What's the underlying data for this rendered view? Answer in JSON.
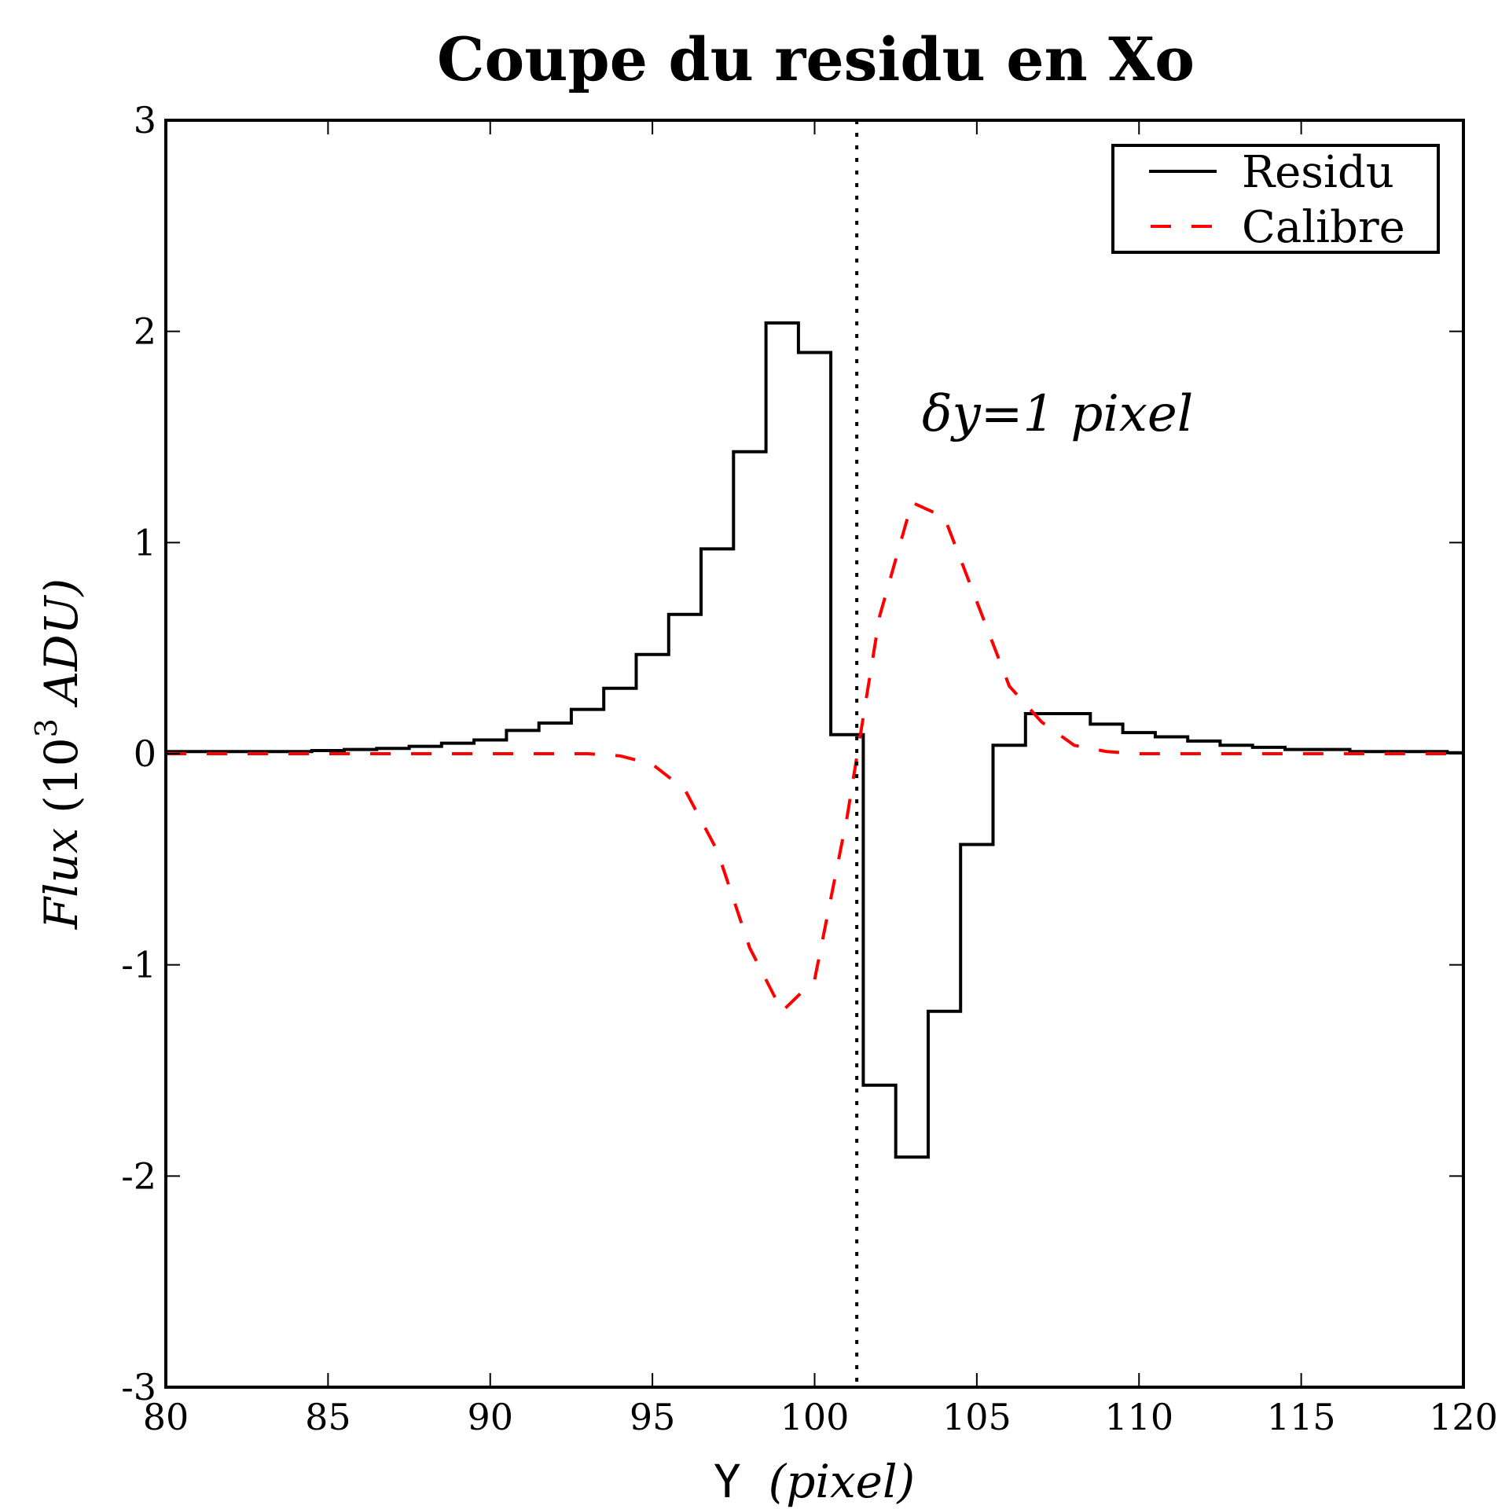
{
  "chart_data": {
    "type": "line",
    "title": "Coupe du residu en Xo",
    "xlabel": "Y (pixel)",
    "xlabel_parts": {
      "plain": "Y ",
      "italic": "(pixel)"
    },
    "ylabel": "Flux (10^3 ADU)",
    "ylabel_parts": {
      "italic_flux": "Flux",
      "open": " (10",
      "sup": "3",
      "unit": " ADU)"
    },
    "xlim": [
      80,
      120
    ],
    "ylim": [
      -3,
      3
    ],
    "xticks": [
      80,
      85,
      90,
      95,
      100,
      105,
      110,
      115,
      120
    ],
    "xtick_labels": [
      "80",
      "85",
      "90",
      "95",
      "100",
      "105",
      "110",
      "115",
      "120"
    ],
    "yticks": [
      3,
      2,
      1,
      0,
      -1,
      -2,
      -3
    ],
    "ytick_labels": [
      "3",
      "2",
      "1",
      "0",
      "-1",
      "-2",
      "-3"
    ],
    "grid": false,
    "legend_position": "upper right",
    "legend": [
      {
        "label": "Residu",
        "style": "solid",
        "color": "#000000"
      },
      {
        "label": "Calibre",
        "style": "dashed",
        "color": "#ff0000"
      }
    ],
    "annotation": {
      "text": "δy=1 pixel",
      "x": 103.3,
      "y": 1.55
    },
    "vline": {
      "x": 101.3,
      "style": "dotted",
      "color": "#000000"
    },
    "series": [
      {
        "name": "Residu",
        "kind": "step",
        "color": "#000000",
        "x": [
          80,
          81,
          82,
          83,
          84,
          85,
          86,
          87,
          88,
          89,
          90,
          91,
          92,
          93,
          94,
          95,
          96,
          97,
          98,
          99,
          100,
          101,
          102,
          103,
          104,
          105,
          106,
          107,
          108,
          109,
          110,
          111,
          112,
          113,
          114,
          115,
          116,
          117,
          118,
          119,
          120
        ],
        "values": [
          0.01,
          0.01,
          0.01,
          0.01,
          0.01,
          0.015,
          0.02,
          0.025,
          0.035,
          0.05,
          0.065,
          0.11,
          0.145,
          0.21,
          0.31,
          0.47,
          0.66,
          0.97,
          1.43,
          2.04,
          1.9,
          0.09,
          -1.57,
          -1.91,
          -1.22,
          -0.43,
          0.04,
          0.19,
          0.19,
          0.14,
          0.1,
          0.08,
          0.06,
          0.04,
          0.03,
          0.02,
          0.02,
          0.01,
          0.01,
          0.01,
          0.005
        ]
      },
      {
        "name": "Calibre",
        "kind": "line",
        "color": "#ff0000",
        "x": [
          80,
          81,
          82,
          83,
          84,
          85,
          86,
          87,
          88,
          89,
          90,
          91,
          92,
          93,
          94,
          95,
          96,
          97,
          98,
          99,
          100,
          101,
          102,
          103,
          104,
          105,
          106,
          107,
          108,
          109,
          110,
          111,
          112,
          113,
          114,
          115,
          116,
          117,
          118,
          119,
          120
        ],
        "values": [
          0,
          0,
          0,
          0,
          0,
          0,
          0,
          0,
          0,
          0,
          0,
          0,
          0,
          0,
          -0.01,
          -0.05,
          -0.17,
          -0.46,
          -0.92,
          -1.22,
          -1.07,
          -0.3,
          0.65,
          1.19,
          1.12,
          0.72,
          0.32,
          0.15,
          0.04,
          0.01,
          0,
          0,
          0,
          0,
          0,
          0,
          0,
          0,
          0,
          0,
          0
        ]
      }
    ]
  }
}
